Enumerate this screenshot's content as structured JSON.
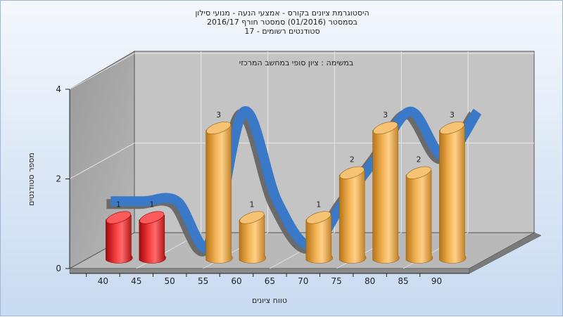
{
  "chart_data": {
    "type": "bar",
    "title_lines": [
      "היסטוגרמת ציונים בקורס - אמצעי הנעה - מנועי סילון",
      "בסמסטר  (01/2016)  סמסטר חורף 2016/17",
      "סטודנטים רשומים - 17"
    ],
    "annotation": "במשימה : ציון סופי במחשב המרכזי",
    "xlabel": "טווח ציונים",
    "ylabel": "מספר סטודנטים",
    "ylim": [
      0,
      4
    ],
    "y_ticks": [
      "0",
      "2",
      "4"
    ],
    "categories": [
      "40",
      "45",
      "50",
      "55",
      "60",
      "65",
      "70",
      "75",
      "80",
      "85",
      "90"
    ],
    "values": [
      1,
      1,
      0,
      3,
      1,
      0,
      1,
      2,
      3,
      2,
      3
    ],
    "data_labels": [
      "1",
      "1",
      "",
      "3",
      "1",
      "",
      "1",
      "2",
      "3",
      "2",
      "3"
    ],
    "bar_colors": [
      "#e52222",
      "#e52222",
      "#e5a040",
      "#e5a040",
      "#e5a040",
      "#e5a040",
      "#e5a040",
      "#e5a040",
      "#e5a040",
      "#e5a040",
      "#e5a040"
    ],
    "curve_color": "#3a78c8",
    "curve_shadow_color": "#6b6b6b",
    "grid": true
  }
}
